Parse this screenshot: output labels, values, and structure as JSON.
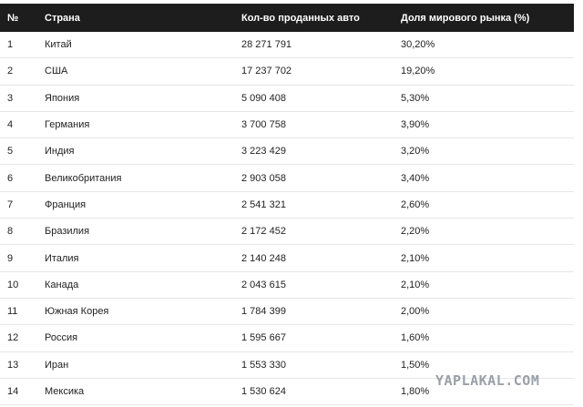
{
  "table": {
    "headers": [
      "№",
      "Страна",
      "Кол-во проданных авто",
      "Доля мирового рынка (%)"
    ],
    "rows": [
      [
        "1",
        "Китай",
        "28 271 791",
        "30,20%"
      ],
      [
        "2",
        "США",
        "17 237 702",
        "19,20%"
      ],
      [
        "3",
        "Япония",
        "5 090 408",
        "5,30%"
      ],
      [
        "4",
        "Германия",
        "3 700 758",
        "3,90%"
      ],
      [
        "5",
        "Индия",
        "3 223 429",
        "3,20%"
      ],
      [
        "6",
        "Великобритания",
        "2 903 058",
        "3,40%"
      ],
      [
        "7",
        "Франция",
        "2 541 321",
        "2,60%"
      ],
      [
        "8",
        "Бразилия",
        "2 172 452",
        "2,20%"
      ],
      [
        "9",
        "Италия",
        "2 140 248",
        "2,10%"
      ],
      [
        "10",
        "Канада",
        "2 043 615",
        "2,10%"
      ],
      [
        "11",
        "Южная Корея",
        "1 784 399",
        "2,00%"
      ],
      [
        "12",
        "Россия",
        "1 595 667",
        "1,60%"
      ],
      [
        "13",
        "Иран",
        "1 553 330",
        "1,50%"
      ],
      [
        "14",
        "Мексика",
        "1 530 624",
        "1,80%"
      ]
    ]
  },
  "watermark": "YAPLAKAL.COM"
}
